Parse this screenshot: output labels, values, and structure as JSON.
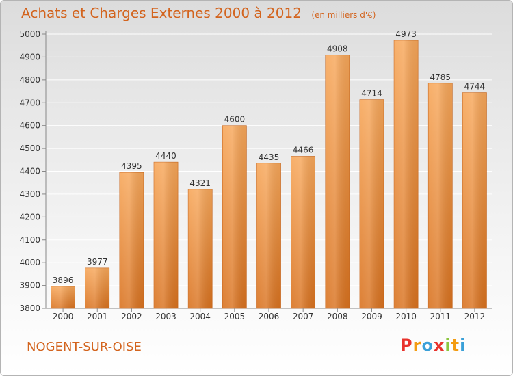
{
  "header": {
    "title": "Achats et Charges Externes 2000 à 2012",
    "subtitle": "(en milliers d'€)"
  },
  "footer": {
    "city": "NOGENT-SUR-OISE",
    "logo_letters": [
      "P",
      "r",
      "o",
      "x",
      "i",
      "t",
      "i"
    ],
    "logo_colors": [
      "#e8322c",
      "#f39c12",
      "#3aa0d8",
      "#e8322c",
      "#8cc63f",
      "#f39c12",
      "#3aa0d8"
    ]
  },
  "colors": {
    "bar_top": "#f7a75a",
    "bar_bottom": "#d9721f",
    "bar_edge": "#c8651b",
    "text": "#333333",
    "grid": "#ffffff"
  },
  "chart_data": {
    "type": "bar",
    "title": "Achats et Charges Externes 2000 à 2012",
    "subtitle": "(en milliers d'€)",
    "xlabel": "",
    "ylabel": "",
    "categories": [
      "2000",
      "2001",
      "2002",
      "2003",
      "2004",
      "2005",
      "2006",
      "2007",
      "2008",
      "2009",
      "2010",
      "2011",
      "2012"
    ],
    "values": [
      3896,
      3977,
      4395,
      4440,
      4321,
      4600,
      4435,
      4466,
      4908,
      4714,
      4973,
      4785,
      4744
    ],
    "data_labels": [
      "3896",
      "3977",
      "4395",
      "4440",
      "4321",
      "4600",
      "4435",
      "4466",
      "4908",
      "4714",
      "4973",
      "4785",
      "4744"
    ],
    "ylim": [
      3800,
      5000
    ],
    "yticks": [
      3800,
      3900,
      4000,
      4100,
      4200,
      4300,
      4400,
      4500,
      4600,
      4700,
      4800,
      4900,
      5000
    ],
    "ytick_labels": [
      "3800",
      "3900",
      "4000",
      "4100",
      "4200",
      "4300",
      "4400",
      "4500",
      "4600",
      "4700",
      "4800",
      "4900",
      "5000"
    ],
    "grid": true,
    "legend": "none"
  }
}
